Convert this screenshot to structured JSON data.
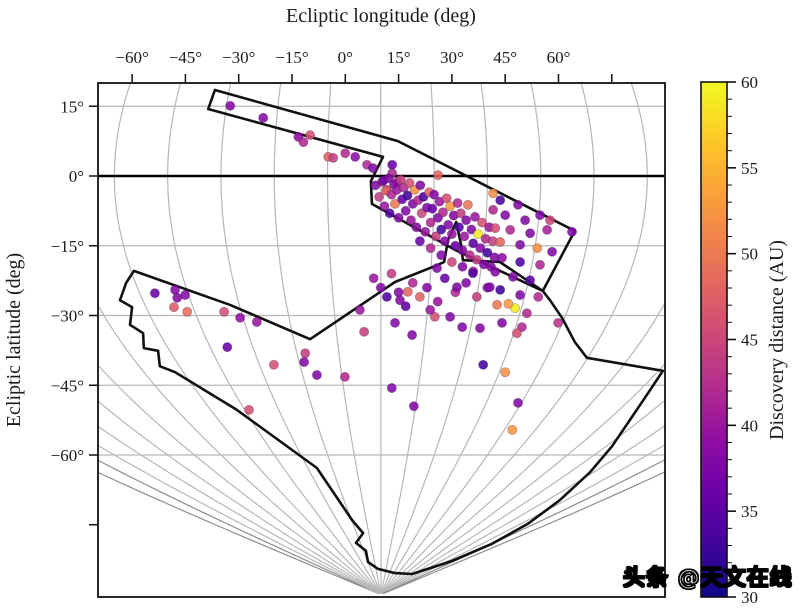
{
  "labels": {
    "top_axis": "Ecliptic longitude (deg)",
    "left_axis": "Ecliptic latitude (deg)",
    "colorbar": "Discovery distance (AU)"
  },
  "watermark": "头条 @天文在线",
  "axis": {
    "xtick_values": [
      -60,
      -45,
      -30,
      -15,
      0,
      15,
      30,
      45,
      60
    ],
    "xtick_labels": [
      "−60°",
      "−45°",
      "−30°",
      "−15°",
      "0°",
      "15°",
      "30°",
      "45°",
      "60°"
    ],
    "xtick_unlabeled": [
      75
    ],
    "ytick_values": [
      15,
      0,
      -15,
      -30,
      -45,
      -60
    ],
    "ytick_labels": [
      "15°",
      "0°",
      "−15°",
      "−30°",
      "−45°",
      "−60°"
    ],
    "ytick_unlabeled": [
      -75
    ]
  },
  "colorbar": {
    "min": 30,
    "max": 60,
    "tick_values": [
      30,
      35,
      40,
      45,
      50,
      55,
      60
    ],
    "tick_labels": [
      "30",
      "35",
      "40",
      "45",
      "50",
      "55",
      "60"
    ],
    "minor_step": 1,
    "colormap_name": "plasma",
    "colormap_stops": [
      [
        0.0,
        "#0d0887"
      ],
      [
        0.1,
        "#41049d"
      ],
      [
        0.2,
        "#6a00a8"
      ],
      [
        0.3,
        "#8f0da4"
      ],
      [
        0.4,
        "#b12a90"
      ],
      [
        0.5,
        "#cc4778"
      ],
      [
        0.6,
        "#e16462"
      ],
      [
        0.7,
        "#f2844b"
      ],
      [
        0.8,
        "#fca636"
      ],
      [
        0.9,
        "#fcce25"
      ],
      [
        1.0,
        "#f0f921"
      ]
    ]
  },
  "style_colors": {
    "grid_gray": "#b7b7b7",
    "grid_dark": "#8d8d8d",
    "spine_black": "#111111",
    "equator_black": "#000000"
  },
  "chart_data": {
    "type": "scatter",
    "title": "",
    "xlabel": "Ecliptic longitude (deg)",
    "ylabel": "Ecliptic latitude (deg)",
    "color_label": "Discovery distance (AU)",
    "xlim": [
      -69.6,
      90.0
    ],
    "ylim": [
      -90.5,
      20.0
    ],
    "color_range": [
      30,
      60
    ],
    "grid": "meridians every 15 deg (curved, converging at south pole near lon +10), horizontal parallels every 15 deg, equator emphasized",
    "legend_position": "colorbar-right",
    "footprints": [
      [
        [
          -36.7,
          18.5
        ],
        [
          -38.6,
          14.4
        ],
        [
          10.6,
          4.1
        ],
        [
          7.2,
          -1.1
        ],
        [
          7.5,
          -6.0
        ],
        [
          30.9,
          -15.9
        ],
        [
          55.6,
          -24.7
        ],
        [
          64.6,
          -11.8
        ],
        [
          14.8,
          7.5
        ]
      ],
      [
        [
          -59.5,
          -20.4
        ],
        [
          -61.7,
          -23.0
        ],
        [
          -63.4,
          -26.7
        ],
        [
          -60.0,
          -28.2
        ],
        [
          -60.6,
          -32.0
        ],
        [
          -56.9,
          -33.8
        ],
        [
          -56.7,
          -37.0
        ],
        [
          -52.7,
          -37.6
        ],
        [
          -52.2,
          -40.9
        ],
        [
          -47.9,
          -42.2
        ],
        [
          -30.5,
          -50.3
        ],
        [
          -8.0,
          -62.8
        ],
        [
          1.9,
          -74.0
        ],
        [
          5.0,
          -76.8
        ],
        [
          3.0,
          -78.9
        ],
        [
          5.8,
          -80.6
        ],
        [
          6.4,
          -83.0
        ],
        [
          9.2,
          -84.5
        ],
        [
          14.0,
          -85.4
        ],
        [
          18.8,
          -85.6
        ],
        [
          30.0,
          -82.8
        ],
        [
          41.3,
          -79.1
        ],
        [
          51.4,
          -74.8
        ],
        [
          60.4,
          -69.7
        ],
        [
          68.9,
          -63.7
        ],
        [
          75.1,
          -58.1
        ],
        [
          80.7,
          -51.8
        ],
        [
          85.2,
          -46.7
        ],
        [
          89.4,
          -41.9
        ],
        [
          68.0,
          -39.1
        ],
        [
          64.6,
          -35.7
        ],
        [
          61.0,
          -30.5
        ],
        [
          57.6,
          -26.7
        ],
        [
          55.6,
          -24.7
        ],
        [
          43.5,
          -18.5
        ],
        [
          33.1,
          -18.1
        ],
        [
          32.6,
          -14.8
        ],
        [
          31.2,
          -9.9
        ],
        [
          28.9,
          -13.8
        ],
        [
          27.8,
          -18.5
        ],
        [
          26.1,
          -19.1
        ],
        [
          14.0,
          -22.8
        ],
        [
          -9.9,
          -35.1
        ],
        [
          -32.5,
          -27.7
        ]
      ]
    ],
    "points": [
      [
        -32.4,
        15.1,
        38
      ],
      [
        -23.1,
        12.5,
        38
      ],
      [
        -13.2,
        8.4,
        39
      ],
      [
        -11.8,
        7.3,
        42
      ],
      [
        -9.9,
        8.8,
        46
      ],
      [
        -4.8,
        4.1,
        48
      ],
      [
        -3.4,
        3.9,
        44
      ],
      [
        0,
        4.9,
        42
      ],
      [
        2.8,
        4.1,
        39
      ],
      [
        6.1,
        2.4,
        42
      ],
      [
        7.8,
        1.7,
        38
      ],
      [
        13.2,
        2.4,
        36
      ],
      [
        13.2,
        0.6,
        42
      ],
      [
        10.3,
        -1.3,
        46
      ],
      [
        14.6,
        -1.3,
        42
      ],
      [
        11.7,
        -3,
        45
      ],
      [
        8.5,
        -2,
        38
      ],
      [
        9.5,
        -4.5,
        44
      ],
      [
        10.7,
        -1,
        36
      ],
      [
        11,
        -6.5,
        40
      ],
      [
        11.5,
        -3.2,
        48
      ],
      [
        12.2,
        -0.5,
        38
      ],
      [
        12.5,
        -8,
        34
      ],
      [
        13,
        -4,
        42
      ],
      [
        13.7,
        -1.8,
        38
      ],
      [
        14,
        -6,
        50
      ],
      [
        14.5,
        -3,
        40
      ],
      [
        15,
        -9,
        38
      ],
      [
        15.6,
        -0.8,
        44
      ],
      [
        16,
        -5,
        36
      ],
      [
        16.5,
        -2.5,
        42
      ],
      [
        17,
        -7.5,
        38
      ],
      [
        17.5,
        -4.2,
        33
      ],
      [
        18.1,
        -1.5,
        46
      ],
      [
        18.5,
        -9.5,
        40
      ],
      [
        19,
        -6,
        38
      ],
      [
        19.5,
        -3,
        52
      ],
      [
        20,
        -11,
        38
      ],
      [
        20.5,
        -5.2,
        42
      ],
      [
        21.1,
        -2,
        38
      ],
      [
        21.5,
        -8,
        45
      ],
      [
        22,
        -4.5,
        34
      ],
      [
        22.5,
        -12,
        40
      ],
      [
        23,
        -6.8,
        38
      ],
      [
        23.6,
        -3.5,
        48
      ],
      [
        24,
        -10,
        42
      ],
      [
        24.5,
        -7,
        36
      ],
      [
        25,
        -4,
        38
      ],
      [
        25.5,
        -13,
        44
      ],
      [
        26.1,
        -9,
        38
      ],
      [
        26.5,
        -5.5,
        40
      ],
      [
        27,
        -11.5,
        33
      ],
      [
        27.5,
        -7.8,
        42
      ],
      [
        28,
        -14,
        38
      ],
      [
        28.5,
        -4.8,
        46
      ],
      [
        29,
        -10.5,
        38
      ],
      [
        29.5,
        -6.5,
        53
      ],
      [
        30,
        -12.5,
        40
      ],
      [
        30.5,
        -8.5,
        38
      ],
      [
        31,
        -15,
        36
      ],
      [
        31.6,
        -5.8,
        42
      ],
      [
        32,
        -11,
        34
      ],
      [
        32.5,
        -8,
        44
      ],
      [
        33,
        -16,
        38
      ],
      [
        33.5,
        -13,
        40
      ],
      [
        34,
        -9.5,
        38
      ],
      [
        34.5,
        -6.2,
        50
      ],
      [
        35,
        -17,
        42
      ],
      [
        35.5,
        -11.5,
        38
      ],
      [
        36,
        -14.5,
        35
      ],
      [
        36.5,
        -8.8,
        40
      ],
      [
        37,
        -18,
        44
      ],
      [
        37.4,
        -12.5,
        59
      ],
      [
        38,
        -15.5,
        38
      ],
      [
        38.5,
        -10,
        46
      ],
      [
        39,
        -19,
        38
      ],
      [
        39.5,
        -13.5,
        42
      ],
      [
        40,
        -16.5,
        33
      ],
      [
        40.5,
        -11,
        40
      ],
      [
        41,
        -19.5,
        38
      ],
      [
        41.5,
        -14,
        44
      ],
      [
        42,
        -17.5,
        38
      ],
      [
        36,
        -20.5,
        41
      ],
      [
        33,
        -19.5,
        38
      ],
      [
        30,
        -18.5,
        45
      ],
      [
        27,
        -17,
        38
      ],
      [
        24,
        -15.5,
        42
      ],
      [
        21,
        -14,
        36
      ],
      [
        41.6,
        -3.7,
        52
      ],
      [
        26.1,
        0.2,
        48
      ],
      [
        8,
        -22,
        40
      ],
      [
        10,
        -24,
        38
      ],
      [
        13,
        -21,
        44
      ],
      [
        15,
        -25,
        38
      ],
      [
        17,
        -28,
        35
      ],
      [
        19,
        -23,
        42
      ],
      [
        21,
        -26,
        48
      ],
      [
        23,
        -24,
        38
      ],
      [
        26,
        -27,
        40
      ],
      [
        28,
        -22,
        36
      ],
      [
        31,
        -25,
        42
      ],
      [
        34,
        -23,
        38
      ],
      [
        37,
        -26,
        44
      ],
      [
        40,
        -24,
        38
      ],
      [
        15.4,
        -26.7,
        38
      ],
      [
        17.6,
        -24.9,
        48
      ],
      [
        25.8,
        -19.8,
        38
      ],
      [
        31.4,
        -23.9,
        38
      ],
      [
        35.9,
        -20.9,
        34
      ],
      [
        40.7,
        -23.9,
        38
      ],
      [
        37.9,
        -32.7,
        38
      ],
      [
        18.8,
        -34.2,
        38
      ],
      [
        25.2,
        -30.3,
        46
      ],
      [
        23.9,
        -28.8,
        40
      ],
      [
        29.5,
        -30.3,
        38
      ],
      [
        32.9,
        -32.5,
        38
      ],
      [
        43.6,
        -5.2,
        34
      ],
      [
        48.6,
        -6.2,
        38
      ],
      [
        41.6,
        -7.3,
        42
      ],
      [
        45,
        -8.4,
        38
      ],
      [
        50.6,
        -9.5,
        38
      ],
      [
        54.8,
        -8.4,
        38
      ],
      [
        57.6,
        -9.5,
        45
      ],
      [
        42.2,
        -11.2,
        46
      ],
      [
        46.4,
        -11.6,
        42
      ],
      [
        52,
        -12.3,
        38
      ],
      [
        56.8,
        -11.6,
        41
      ],
      [
        63.8,
        -12,
        38
      ],
      [
        43.6,
        -14.2,
        48
      ],
      [
        49.2,
        -14.8,
        38
      ],
      [
        54,
        -15.5,
        52
      ],
      [
        58.2,
        -16.3,
        38
      ],
      [
        44.1,
        -17.6,
        39
      ],
      [
        49.2,
        -18.5,
        34
      ],
      [
        54.8,
        -19.1,
        42
      ],
      [
        42.2,
        -20.6,
        38
      ],
      [
        47.2,
        -21.7,
        38
      ],
      [
        52,
        -22.4,
        35
      ],
      [
        43.6,
        -24.5,
        33
      ],
      [
        49.2,
        -25.6,
        38
      ],
      [
        54.3,
        -26,
        42
      ],
      [
        42.7,
        -27.7,
        50
      ],
      [
        47.8,
        -28.4,
        59
      ],
      [
        45.9,
        -27.5,
        53
      ],
      [
        51.1,
        -29.5,
        42
      ],
      [
        44.1,
        -31.6,
        38
      ],
      [
        49.7,
        -32.5,
        42
      ],
      [
        59.9,
        -31.6,
        43
      ],
      [
        48.3,
        -33.8,
        46
      ],
      [
        -53.6,
        -25.2,
        36
      ],
      [
        -47.9,
        -24.5,
        38
      ],
      [
        -47.3,
        -26.2,
        38
      ],
      [
        -48.2,
        -28.2,
        47
      ],
      [
        -45.1,
        -25.6,
        38
      ],
      [
        -44.5,
        -29.2,
        49
      ],
      [
        -34.1,
        -29.2,
        46
      ],
      [
        -29.6,
        -30.5,
        39
      ],
      [
        -24.9,
        -31.4,
        40
      ],
      [
        -33.2,
        -36.8,
        36
      ],
      [
        -20.1,
        -40.6,
        46
      ],
      [
        4.1,
        -28.8,
        40
      ],
      [
        5.3,
        -33.5,
        44
      ],
      [
        11.7,
        -26,
        34
      ],
      [
        14,
        -31.6,
        38
      ],
      [
        -11.3,
        -38.1,
        44
      ],
      [
        -11.6,
        -40,
        38
      ],
      [
        -8,
        -42.8,
        38
      ],
      [
        -0.1,
        -43.2,
        42
      ],
      [
        13.1,
        -45.6,
        38
      ],
      [
        -27.1,
        -50.3,
        46
      ],
      [
        19.3,
        -49.5,
        38
      ],
      [
        48.6,
        -48.8,
        38
      ],
      [
        47,
        -54.6,
        53
      ],
      [
        38.8,
        -40.6,
        33
      ],
      [
        45,
        -42.2,
        52
      ]
    ]
  }
}
